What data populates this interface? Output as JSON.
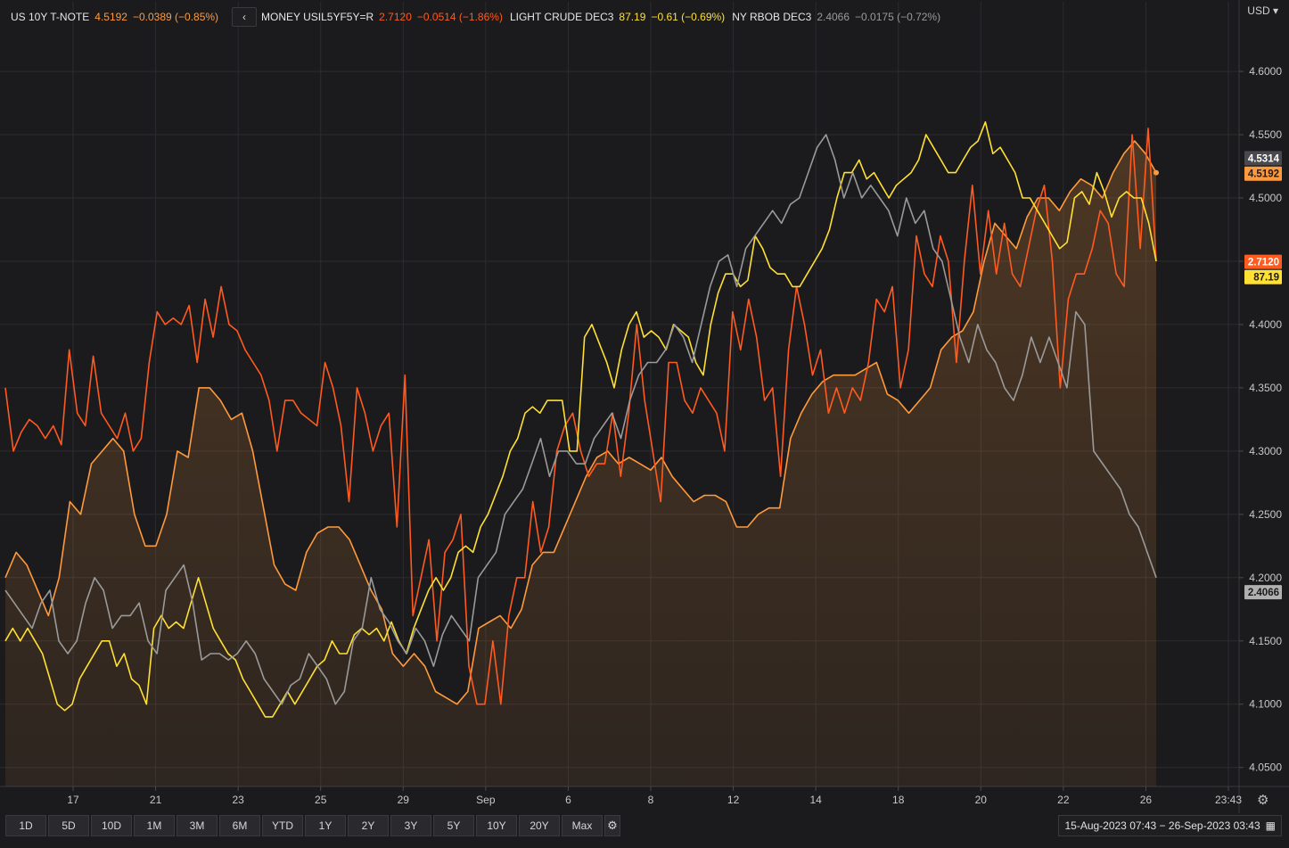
{
  "legend": [
    {
      "name": "US 10Y T-NOTE",
      "value": "4.5192",
      "change": "−0.0389 (−0.85%)",
      "color": "#ff9a3c"
    },
    {
      "name": "MONEY USIL5YF5Y=R",
      "value": "2.7120",
      "change": "−0.0514 (−1.86%)",
      "color": "#ff5a1f"
    },
    {
      "name": "LIGHT CRUDE DEC3",
      "value": "87.19",
      "change": "−0.61 (−0.69%)",
      "color": "#ffe033"
    },
    {
      "name": "NY RBOB DEC3",
      "value": "2.4066",
      "change": "−0.0175 (−0.72%)",
      "color": "#9a9a9a"
    }
  ],
  "collapse_label": "‹",
  "currency": "USD",
  "range_buttons": [
    "1D",
    "5D",
    "10D",
    "1M",
    "3M",
    "6M",
    "YTD",
    "1Y",
    "2Y",
    "3Y",
    "5Y",
    "10Y",
    "20Y",
    "Max"
  ],
  "settings_icon": "gear-icon",
  "date_range": "15-Aug-2023 07:43 − 26-Sep-2023 03:43",
  "calendar_icon": "calendar-icon",
  "chart_data": {
    "type": "line",
    "y_axis": {
      "ticks": [
        "4.6000",
        "4.5500",
        "4.5000",
        "4.4500",
        "4.4000",
        "4.3500",
        "4.3000",
        "4.2500",
        "4.2000",
        "4.1500",
        "4.1000",
        "4.0500"
      ],
      "range": [
        4.035,
        4.655
      ],
      "unit": "USD",
      "side": "right"
    },
    "x_axis": {
      "ticks": [
        "17",
        "21",
        "23",
        "25",
        "29",
        "Sep",
        "6",
        "8",
        "12",
        "14",
        "18",
        "20",
        "22",
        "26",
        "23:43"
      ]
    },
    "grid": true,
    "price_tags": [
      {
        "series": "NY RBOB DEC3",
        "label": "4.5314",
        "at": 4.5314,
        "bg": "#4a4a4e",
        "fg": "#ffffff"
      },
      {
        "series": "US 10Y T-NOTE",
        "label": "4.5192",
        "at": 4.5192,
        "bg": "#ff9a3c",
        "fg": "#1b1b1d"
      },
      {
        "series": "MONEY USIL5YF5Y=R",
        "label": "2.7120",
        "at": 4.4495,
        "bg": "#ff5a1f",
        "fg": "#ffffff"
      },
      {
        "series": "LIGHT CRUDE DEC3",
        "label": "87.19",
        "at": 4.4375,
        "bg": "#ffe033",
        "fg": "#1b1b1d"
      },
      {
        "series": "NY RBOB DEC3",
        "label": "2.4066",
        "at": 4.1885,
        "bg": "#b0b0b0",
        "fg": "#1b1b1d"
      }
    ],
    "series": [
      {
        "name": "US 10Y T-NOTE",
        "color": "#ff9a3c",
        "area": true,
        "values": [
          4.2,
          4.22,
          4.21,
          4.19,
          4.17,
          4.2,
          4.26,
          4.25,
          4.29,
          4.3,
          4.31,
          4.3,
          4.25,
          4.225,
          4.225,
          4.25,
          4.3,
          4.295,
          4.35,
          4.35,
          4.34,
          4.325,
          4.33,
          4.3,
          4.255,
          4.21,
          4.195,
          4.19,
          4.22,
          4.235,
          4.24,
          4.24,
          4.23,
          4.21,
          4.19,
          4.175,
          4.14,
          4.13,
          4.14,
          4.13,
          4.11,
          4.105,
          4.1,
          4.11,
          4.16,
          4.165,
          4.17,
          4.16,
          4.175,
          4.21,
          4.22,
          4.22,
          4.24,
          4.26,
          4.28,
          4.295,
          4.3,
          4.29,
          4.295,
          4.29,
          4.285,
          4.295,
          4.28,
          4.27,
          4.26,
          4.265,
          4.265,
          4.26,
          4.24,
          4.24,
          4.25,
          4.255,
          4.255,
          4.31,
          4.33,
          4.345,
          4.355,
          4.36,
          4.36,
          4.36,
          4.365,
          4.37,
          4.345,
          4.34,
          4.33,
          4.34,
          4.35,
          4.38,
          4.39,
          4.395,
          4.41,
          4.45,
          4.48,
          4.47,
          4.46,
          4.485,
          4.5,
          4.5,
          4.49,
          4.505,
          4.515,
          4.51,
          4.5,
          4.52,
          4.535,
          4.545,
          4.535,
          4.52
        ]
      },
      {
        "name": "MONEY USIL5YF5Y=R",
        "color": "#ff5a1f",
        "area": false,
        "values": [
          4.35,
          4.3,
          4.315,
          4.325,
          4.32,
          4.31,
          4.32,
          4.305,
          4.38,
          4.33,
          4.32,
          4.375,
          4.33,
          4.32,
          4.31,
          4.33,
          4.3,
          4.31,
          4.37,
          4.41,
          4.4,
          4.405,
          4.4,
          4.415,
          4.37,
          4.42,
          4.39,
          4.43,
          4.4,
          4.395,
          4.38,
          4.37,
          4.36,
          4.34,
          4.3,
          4.34,
          4.34,
          4.33,
          4.325,
          4.32,
          4.37,
          4.35,
          4.32,
          4.26,
          4.35,
          4.33,
          4.3,
          4.32,
          4.33,
          4.24,
          4.36,
          4.17,
          4.2,
          4.23,
          4.15,
          4.22,
          4.23,
          4.25,
          4.13,
          4.1,
          4.1,
          4.15,
          4.1,
          4.17,
          4.2,
          4.2,
          4.26,
          4.22,
          4.24,
          4.3,
          4.32,
          4.33,
          4.3,
          4.28,
          4.29,
          4.29,
          4.33,
          4.28,
          4.33,
          4.4,
          4.34,
          4.3,
          4.26,
          4.37,
          4.37,
          4.34,
          4.33,
          4.35,
          4.34,
          4.33,
          4.3,
          4.41,
          4.38,
          4.42,
          4.39,
          4.34,
          4.35,
          4.28,
          4.38,
          4.43,
          4.4,
          4.36,
          4.38,
          4.33,
          4.35,
          4.33,
          4.35,
          4.34,
          4.37,
          4.42,
          4.41,
          4.43,
          4.35,
          4.38,
          4.47,
          4.44,
          4.43,
          4.47,
          4.45,
          4.37,
          4.45,
          4.51,
          4.44,
          4.49,
          4.44,
          4.48,
          4.44,
          4.43,
          4.46,
          4.49,
          4.51,
          4.45,
          4.35,
          4.42,
          4.44,
          4.44,
          4.46,
          4.49,
          4.48,
          4.44,
          4.43,
          4.55,
          4.46,
          4.555,
          4.45
        ]
      },
      {
        "name": "LIGHT CRUDE DEC3",
        "color": "#ffe033",
        "area": false,
        "values": [
          4.15,
          4.16,
          4.15,
          4.16,
          4.15,
          4.14,
          4.12,
          4.1,
          4.095,
          4.1,
          4.12,
          4.13,
          4.14,
          4.15,
          4.15,
          4.13,
          4.14,
          4.12,
          4.115,
          4.1,
          4.16,
          4.17,
          4.16,
          4.165,
          4.16,
          4.18,
          4.2,
          4.18,
          4.16,
          4.15,
          4.14,
          4.135,
          4.12,
          4.11,
          4.1,
          4.09,
          4.09,
          4.1,
          4.11,
          4.1,
          4.11,
          4.12,
          4.13,
          4.135,
          4.15,
          4.14,
          4.14,
          4.155,
          4.16,
          4.155,
          4.16,
          4.15,
          4.165,
          4.15,
          4.14,
          4.16,
          4.175,
          4.19,
          4.2,
          4.19,
          4.2,
          4.22,
          4.225,
          4.22,
          4.24,
          4.25,
          4.265,
          4.28,
          4.3,
          4.31,
          4.33,
          4.335,
          4.33,
          4.34,
          4.34,
          4.34,
          4.3,
          4.3,
          4.39,
          4.4,
          4.385,
          4.37,
          4.35,
          4.38,
          4.4,
          4.41,
          4.39,
          4.395,
          4.39,
          4.38,
          4.4,
          4.395,
          4.39,
          4.37,
          4.36,
          4.4,
          4.425,
          4.44,
          4.44,
          4.43,
          4.435,
          4.47,
          4.46,
          4.445,
          4.44,
          4.44,
          4.43,
          4.43,
          4.44,
          4.45,
          4.46,
          4.475,
          4.5,
          4.52,
          4.52,
          4.53,
          4.515,
          4.52,
          4.51,
          4.5,
          4.51,
          4.515,
          4.52,
          4.53,
          4.55,
          4.54,
          4.53,
          4.52,
          4.52,
          4.53,
          4.54,
          4.545,
          4.56,
          4.535,
          4.54,
          4.53,
          4.52,
          4.5,
          4.5,
          4.49,
          4.48,
          4.47,
          4.46,
          4.465,
          4.5,
          4.505,
          4.495,
          4.52,
          4.505,
          4.485,
          4.5,
          4.505,
          4.5,
          4.5,
          4.48,
          4.45
        ]
      },
      {
        "name": "NY RBOB DEC3",
        "color": "#9a9a9a",
        "area": false,
        "values": [
          4.19,
          4.18,
          4.17,
          4.16,
          4.18,
          4.19,
          4.15,
          4.14,
          4.15,
          4.18,
          4.2,
          4.19,
          4.16,
          4.17,
          4.17,
          4.18,
          4.15,
          4.14,
          4.19,
          4.2,
          4.21,
          4.18,
          4.135,
          4.14,
          4.14,
          4.135,
          4.14,
          4.15,
          4.14,
          4.12,
          4.11,
          4.1,
          4.115,
          4.12,
          4.14,
          4.13,
          4.12,
          4.1,
          4.11,
          4.15,
          4.16,
          4.2,
          4.175,
          4.165,
          4.15,
          4.14,
          4.16,
          4.15,
          4.13,
          4.155,
          4.17,
          4.16,
          4.15,
          4.2,
          4.21,
          4.22,
          4.25,
          4.26,
          4.27,
          4.29,
          4.31,
          4.28,
          4.3,
          4.3,
          4.29,
          4.29,
          4.31,
          4.32,
          4.33,
          4.31,
          4.34,
          4.36,
          4.37,
          4.37,
          4.38,
          4.4,
          4.39,
          4.37,
          4.4,
          4.43,
          4.45,
          4.455,
          4.43,
          4.46,
          4.47,
          4.48,
          4.49,
          4.48,
          4.495,
          4.5,
          4.52,
          4.54,
          4.55,
          4.53,
          4.5,
          4.52,
          4.5,
          4.51,
          4.5,
          4.49,
          4.47,
          4.5,
          4.48,
          4.49,
          4.46,
          4.45,
          4.42,
          4.39,
          4.37,
          4.4,
          4.38,
          4.37,
          4.35,
          4.34,
          4.36,
          4.39,
          4.37,
          4.39,
          4.37,
          4.35,
          4.41,
          4.4,
          4.3,
          4.29,
          4.28,
          4.27,
          4.25,
          4.24,
          4.22,
          4.2
        ]
      }
    ]
  }
}
